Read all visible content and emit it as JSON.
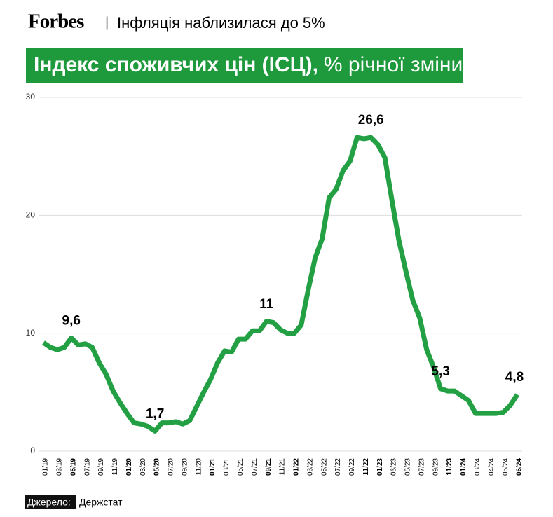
{
  "header": {
    "brand": "Forbes",
    "separator": "|",
    "headline": "Інфляція наблизилася до 5%"
  },
  "source": {
    "label": "Джерело:",
    "text": "Держстат"
  },
  "chart_data": {
    "type": "line",
    "title": "Індекс споживчих цін (ІСЦ),",
    "subtitle": "% річної зміни",
    "categories": [
      "01/19",
      null,
      "03/19",
      null,
      "05/19",
      null,
      "07/19",
      null,
      "09/19",
      null,
      "11/19",
      null,
      "01/20",
      null,
      "03/20",
      null,
      "05/20",
      null,
      "07/20",
      null,
      "09/20",
      null,
      "11/20",
      null,
      "01/21",
      null,
      "03/21",
      null,
      "05/21",
      null,
      "07/21",
      null,
      "09/21",
      null,
      "11/21",
      null,
      "01/22",
      null,
      "03/22",
      null,
      "05/22",
      null,
      "07/22",
      null,
      "09/22",
      null,
      "11/22",
      null,
      "01/23",
      null,
      "03/23",
      null,
      "05/23",
      null,
      "07/23",
      null,
      "09/23",
      null,
      "11/23",
      null,
      "01/24",
      null,
      "03/24",
      null,
      "04/24",
      null,
      "05/24",
      null,
      "06/24"
    ],
    "highlighted_categories": [
      4,
      12,
      16,
      24,
      32,
      36,
      46,
      48,
      58,
      60,
      68
    ],
    "series": [
      {
        "name": "ІСЦ",
        "color": "#23a043",
        "values": [
          9.2,
          8.8,
          8.6,
          8.8,
          9.6,
          9.0,
          9.1,
          8.8,
          7.5,
          6.5,
          5.1,
          4.1,
          3.2,
          2.4,
          2.3,
          2.1,
          1.7,
          2.4,
          2.4,
          2.5,
          2.3,
          2.6,
          3.8,
          5.0,
          6.1,
          7.5,
          8.5,
          8.4,
          9.5,
          9.5,
          10.2,
          10.2,
          11.0,
          10.9,
          10.3,
          10.0,
          10.0,
          10.7,
          13.7,
          16.4,
          18.0,
          21.5,
          22.2,
          23.8,
          24.6,
          26.6,
          26.5,
          26.6,
          26.0,
          24.9,
          21.3,
          17.9,
          15.3,
          12.8,
          11.3,
          8.6,
          7.1,
          5.3,
          5.1,
          5.1,
          4.7,
          4.3,
          3.2,
          3.2,
          3.2,
          3.2,
          3.3,
          3.9,
          4.8
        ],
        "value_labels": [
          null,
          null,
          null,
          null,
          "9,6",
          null,
          null,
          null,
          null,
          null,
          null,
          null,
          null,
          null,
          null,
          null,
          "1,7",
          null,
          null,
          null,
          null,
          null,
          null,
          null,
          null,
          null,
          null,
          null,
          null,
          null,
          null,
          null,
          "11",
          null,
          null,
          null,
          null,
          null,
          null,
          null,
          null,
          null,
          null,
          null,
          null,
          null,
          null,
          "26,6",
          null,
          null,
          null,
          null,
          null,
          null,
          null,
          null,
          null,
          "5,3",
          null,
          null,
          null,
          null,
          null,
          null,
          null,
          null,
          null,
          null,
          "4,8"
        ]
      }
    ],
    "ylim": [
      0,
      30
    ],
    "yticks": [
      0,
      10,
      20,
      30
    ],
    "grid": true
  }
}
